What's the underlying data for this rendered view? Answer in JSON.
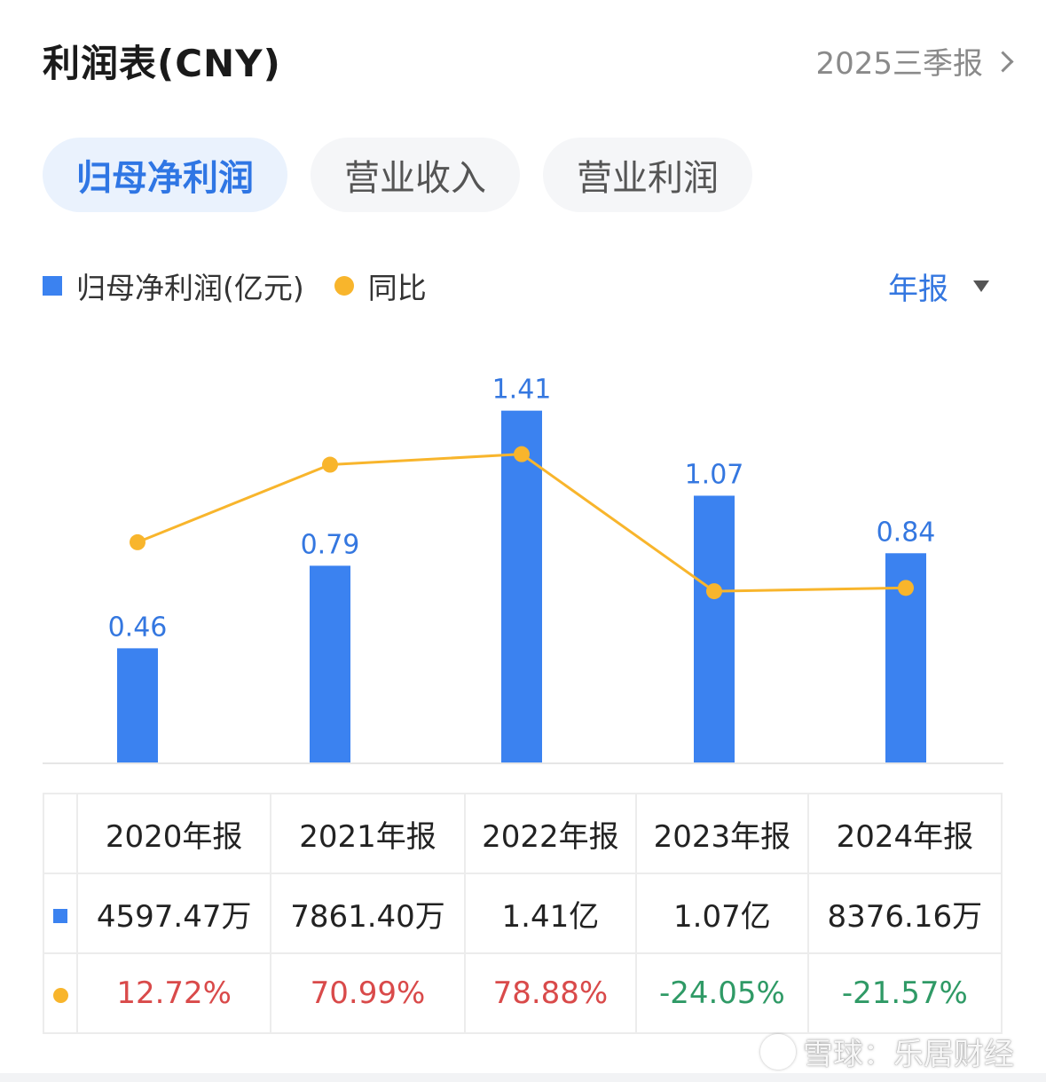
{
  "header": {
    "title": "利润表(CNY)",
    "report_link": "2025三季报"
  },
  "tabs": [
    {
      "label": "归母净利润",
      "active": true
    },
    {
      "label": "营业收入",
      "active": false
    },
    {
      "label": "营业利润",
      "active": false
    }
  ],
  "legend": {
    "bar_label": "归母净利润(亿元)",
    "line_label": "同比"
  },
  "period_selector": {
    "label": "年报"
  },
  "colors": {
    "bar": "#3b82f0",
    "line": "#f8b52c",
    "positive": "#d94a4a",
    "negative": "#2f9a66"
  },
  "chart_data": {
    "type": "bar",
    "categories": [
      "2020年报",
      "2021年报",
      "2022年报",
      "2023年报",
      "2024年报"
    ],
    "series": [
      {
        "name": "归母净利润(亿元)",
        "type": "bar",
        "values": [
          0.46,
          0.79,
          1.41,
          1.07,
          0.84
        ],
        "data_labels": [
          "0.46",
          "0.79",
          "1.41",
          "1.07",
          "0.84"
        ]
      },
      {
        "name": "同比",
        "type": "line",
        "values": [
          12.72,
          70.99,
          78.88,
          -24.05,
          -21.57
        ]
      }
    ],
    "ylim": [
      0,
      1.55
    ],
    "y2lim": [
      -100,
      110
    ]
  },
  "table": {
    "headers": [
      "2020年报",
      "2021年报",
      "2022年报",
      "2023年报",
      "2024年报"
    ],
    "values": [
      "4597.47万",
      "7861.40万",
      "1.41亿",
      "1.07亿",
      "8376.16万"
    ],
    "yoy": [
      "12.72%",
      "70.99%",
      "78.88%",
      "-24.05%",
      "-21.57%"
    ]
  },
  "watermark": "雪球：乐居财经"
}
